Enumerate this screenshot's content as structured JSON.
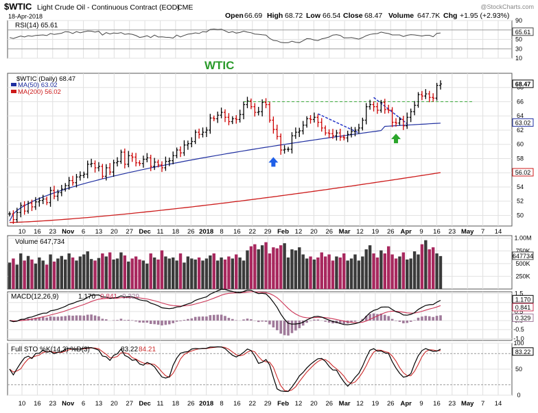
{
  "header": {
    "symbol": "$WTIC",
    "name": "Light Crude Oil - Continuous Contract (EOD)",
    "exchange": "CME",
    "date": "18-Apr-2018",
    "quote": {
      "open_label": "Open",
      "open": "66.69",
      "high_label": "High",
      "high": "68.72",
      "low_label": "Low",
      "low": "66.54",
      "close_label": "Close",
      "close": "68.47",
      "volume_label": "Volume",
      "volume": "647.7K",
      "chg_label": "Chg",
      "chg": "+1.95 (+2.93%)"
    },
    "watermark": "@StockCharts.com",
    "annotation": "WTIC"
  },
  "colors": {
    "up": "#000000",
    "down": "#cc0000",
    "ma50": "#1f2fa0",
    "ma200": "#cc1a1a",
    "rsi": "#444444",
    "macd": "#000000",
    "signal": "#cc3355",
    "hist": "#a07a9a",
    "k": "#000000",
    "d": "#cc2a2a",
    "vol_up": "#3a3a3a",
    "vol_down": "#a8285e",
    "resistance": "#39a839",
    "trend": "#2636c8",
    "arrow_blue": "#1f5fe8",
    "arrow_green": "#2aa52a",
    "title_green": "#2a9a2a"
  },
  "chart_data": {
    "type": "candlestick",
    "x_axis": {
      "labels": [
        "10",
        "16",
        "23",
        "Nov",
        "6",
        "13",
        "20",
        "27",
        "Dec",
        "11",
        "18",
        "26",
        "2018",
        "8",
        "16",
        "22",
        "29",
        "Feb",
        "12",
        "20",
        "26",
        "Mar",
        "12",
        "19",
        "26",
        "Apr",
        "9",
        "16",
        "23",
        "May",
        "7",
        "14"
      ],
      "bold": [
        "Nov",
        "Dec",
        "2018",
        "Feb",
        "Mar",
        "Apr",
        "May"
      ]
    },
    "price": {
      "label": "$WTIC (Daily) 68.47",
      "ma50_label": "MA(50) 63.02",
      "ma200_label": "MA(200) 56.02",
      "ylim": [
        48.5,
        70
      ],
      "ticks": [
        "50",
        "52",
        "54",
        "56",
        "58",
        "60",
        "62",
        "64",
        "66",
        "68"
      ],
      "last_close": "68.47",
      "ma50_last": "63.02",
      "ma200_last": "56.02",
      "resistance": 66.0,
      "closes": [
        50.2,
        49.4,
        50.4,
        51.4,
        50.6,
        51.7,
        51.2,
        51.9,
        52.1,
        52.3,
        51.8,
        53.5,
        52.7,
        53.2,
        53.7,
        54.2,
        54.9,
        54.6,
        55.4,
        55.6,
        55.8,
        57.2,
        57.3,
        56.7,
        56.9,
        55.5,
        56.7,
        56.1,
        57.4,
        57.6,
        58.9,
        57.2,
        58.4,
        58.2,
        57.4,
        57.3,
        57.9,
        58.1,
        56.9,
        57.5,
        57.1,
        56.7,
        57.6,
        57.7,
        58.4,
        59.2,
        58.8,
        59.9,
        60.1,
        60.4,
        61.7,
        61.4,
        61.7,
        62.0,
        63.7,
        63.6,
        64.1,
        64.5,
        63.8,
        63.2,
        63.6,
        63.5,
        64.2,
        65.6,
        66.1,
        65.3,
        64.5,
        64.6,
        65.9,
        65.6,
        63.4,
        62.1,
        61.1,
        59.2,
        59.3,
        59.3,
        61.2,
        61.7,
        61.9,
        62.7,
        63.6,
        63.5,
        63.8,
        63.1,
        62.3,
        61.6,
        61.5,
        61.2,
        61.6,
        61.0,
        60.9,
        61.4,
        61.8,
        62.0,
        62.3,
        63.4,
        65.3,
        65.6,
        65.3,
        64.8,
        65.9,
        64.9,
        64.8,
        63.1,
        63.0,
        63.5,
        62.6,
        63.8,
        64.6,
        65.5,
        67.0,
        66.8,
        67.1,
        66.6,
        66.5,
        68.3,
        68.5
      ],
      "blue_arrow_day": 71,
      "green_arrow_day": 104
    },
    "rsi": {
      "label": "RSI(14) 65.61",
      "last": "65.61",
      "ylim": [
        10,
        90
      ],
      "ticks": [
        "90",
        "70",
        "50",
        "30",
        "10"
      ]
    },
    "volume": {
      "label": "Volume 647,734",
      "last": "647734",
      "ylim": [
        0,
        1050000
      ],
      "ticks": [
        "1.00M",
        "750K",
        "500K",
        "250K"
      ],
      "values": [
        520,
        600,
        480,
        700,
        560,
        650,
        580,
        500,
        620,
        560,
        480,
        680,
        540,
        600,
        650,
        580,
        700,
        620,
        560,
        640,
        680,
        740,
        590,
        560,
        610,
        700,
        640,
        720,
        580,
        600,
        720,
        660,
        540,
        600,
        640,
        580,
        560,
        500,
        700,
        620,
        580,
        760,
        640,
        600,
        620,
        560,
        700,
        520,
        640,
        600,
        580,
        620,
        560,
        600,
        660,
        700,
        560,
        620,
        580,
        640,
        600,
        680,
        620,
        560,
        760,
        840,
        880,
        780,
        860,
        920,
        700,
        820,
        800,
        860,
        900,
        620,
        780,
        760,
        820,
        680,
        600,
        640,
        580,
        620,
        720,
        640,
        680,
        560,
        640,
        620,
        700,
        560,
        600,
        680,
        560,
        640,
        780,
        860,
        700,
        620,
        760,
        700,
        840,
        680,
        600,
        640,
        720,
        580,
        600,
        740,
        680,
        880,
        960,
        780,
        820,
        700,
        648
      ]
    },
    "macd": {
      "label": "MACD(12,26,9)",
      "macd": "1.170",
      "signal": "0.841",
      "hist": "0.329",
      "ylim": [
        -1.1,
        1.6
      ],
      "ticks": [
        "1.5",
        "1.0",
        "0.5",
        "0.0",
        "-0.5",
        "-1.0"
      ]
    },
    "sto": {
      "label": "Full STO %K(14,3) %D(3)",
      "k": "83.22",
      "d": "84.21",
      "ylim": [
        0,
        100
      ],
      "ticks": [
        "100",
        "50",
        "0"
      ]
    }
  }
}
